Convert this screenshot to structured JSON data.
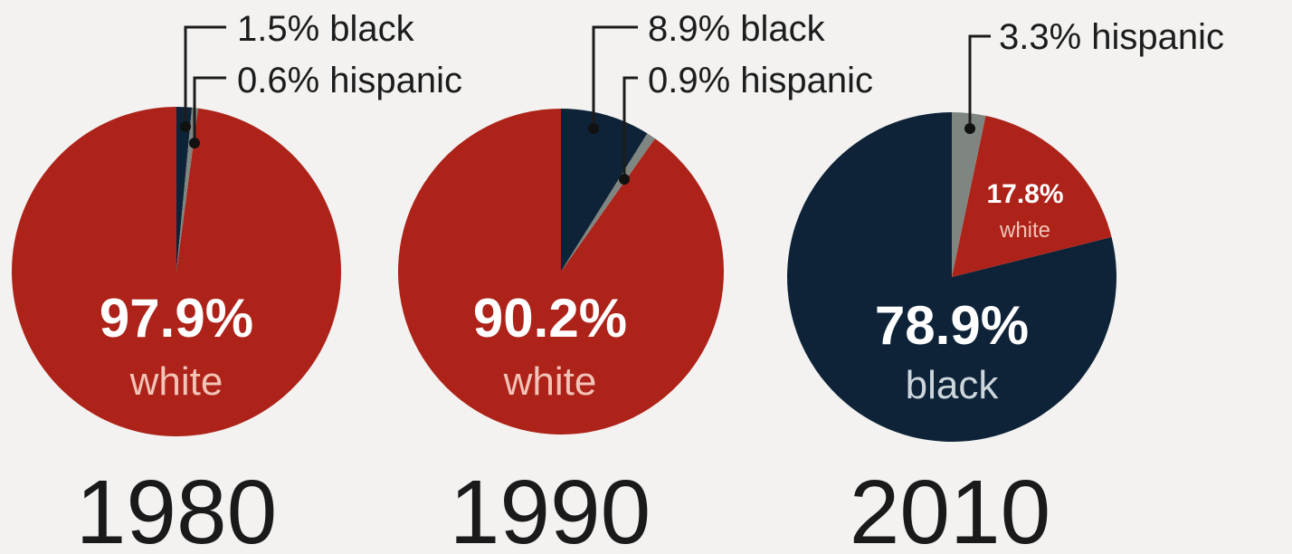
{
  "colors": {
    "white": "#ad2219",
    "black": "#0e2338",
    "hispanic": "#7f8580",
    "white_label": "#f2c3b6",
    "black_label": "#cdd6dc"
  },
  "chart_data": [
    {
      "type": "pie",
      "year": "1980",
      "slices": [
        {
          "group": "white",
          "value": 97.9
        },
        {
          "group": "black",
          "value": 1.5
        },
        {
          "group": "hispanic",
          "value": 0.6
        }
      ],
      "labels": {
        "main_pct": "97.9%",
        "main_group": "white",
        "callouts": [
          "1.5% black",
          "0.6% hispanic"
        ]
      }
    },
    {
      "type": "pie",
      "year": "1990",
      "slices": [
        {
          "group": "white",
          "value": 90.2
        },
        {
          "group": "black",
          "value": 8.9
        },
        {
          "group": "hispanic",
          "value": 0.9
        }
      ],
      "labels": {
        "main_pct": "90.2%",
        "main_group": "white",
        "callouts": [
          "8.9% black",
          "0.9% hispanic"
        ]
      }
    },
    {
      "type": "pie",
      "year": "2010",
      "slices": [
        {
          "group": "black",
          "value": 78.9
        },
        {
          "group": "white",
          "value": 17.8
        },
        {
          "group": "hispanic",
          "value": 3.3
        }
      ],
      "labels": {
        "main_pct": "78.9%",
        "main_group": "black",
        "second_pct": "17.8%",
        "second_group": "white",
        "callouts": [
          "3.3% hispanic"
        ]
      }
    }
  ]
}
